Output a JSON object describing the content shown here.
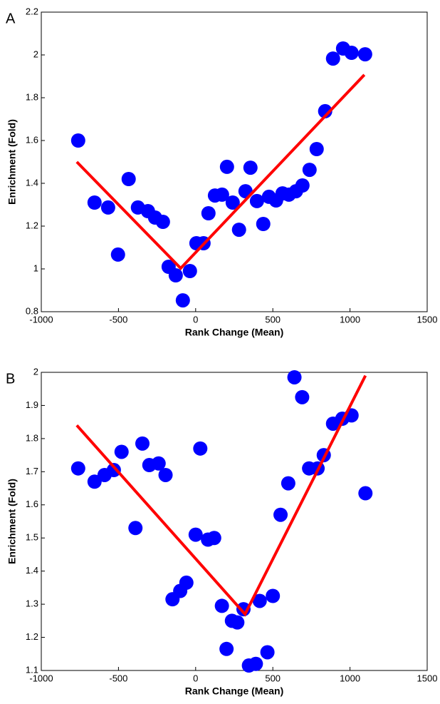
{
  "chart_data": [
    {
      "type": "scatter",
      "panel_label": "A",
      "xlabel": "Rank Change (Mean)",
      "ylabel": "Enrichment (Fold)",
      "xlim": [
        -1000,
        1500
      ],
      "ylim": [
        0.8,
        2.2
      ],
      "xticks": [
        -1000,
        -500,
        0,
        500,
        1000,
        1500
      ],
      "yticks": [
        0.8,
        1,
        1.2,
        1.4,
        1.6,
        1.8,
        2,
        2.2
      ],
      "series": [
        {
          "type": "scatter",
          "color": "#0000ff",
          "x": [
            -761,
            -655,
            -567,
            -503,
            -434,
            -374,
            -309,
            -263,
            -212,
            -175,
            -129,
            -83,
            -37,
            5,
            51,
            83,
            125,
            171,
            203,
            240,
            281,
            323,
            355,
            397,
            438,
            475,
            521,
            563,
            604,
            650,
            692,
            738,
            784,
            839,
            890,
            955,
            1010,
            1098
          ],
          "values": [
            1.6,
            1.31,
            1.287,
            1.067,
            1.42,
            1.287,
            1.27,
            1.24,
            1.22,
            1.01,
            0.97,
            0.853,
            0.99,
            1.12,
            1.12,
            1.26,
            1.343,
            1.347,
            1.477,
            1.31,
            1.183,
            1.363,
            1.473,
            1.317,
            1.21,
            1.337,
            1.32,
            1.353,
            1.347,
            1.363,
            1.39,
            1.463,
            1.56,
            1.737,
            1.983,
            2.03,
            2.01,
            2.003
          ]
        },
        {
          "type": "line",
          "color": "#ff0000",
          "x": [
            -770,
            -97,
            1093
          ],
          "values": [
            1.5,
            1.003,
            1.907
          ]
        }
      ]
    },
    {
      "type": "scatter",
      "panel_label": "B",
      "xlabel": "Rank Change (Mean)",
      "ylabel": "Enrichment (Fold)",
      "xlim": [
        -1000,
        1500
      ],
      "ylim": [
        1.1,
        2
      ],
      "xticks": [
        -1000,
        -500,
        0,
        500,
        1000,
        1500
      ],
      "yticks": [
        1.1,
        1.2,
        1.3,
        1.4,
        1.5,
        1.6,
        1.7,
        1.8,
        1.9,
        2
      ],
      "series": [
        {
          "type": "scatter",
          "color": "#0000ff",
          "x": [
            -761,
            -655,
            -590,
            -530,
            -480,
            -390,
            -345,
            -300,
            -240,
            -195,
            -150,
            -100,
            -60,
            0,
            30,
            80,
            120,
            170,
            200,
            235,
            270,
            310,
            345,
            390,
            415,
            465,
            500,
            550,
            600,
            640,
            690,
            735,
            790,
            830,
            890,
            950,
            1010,
            1100
          ],
          "values": [
            1.71,
            1.67,
            1.69,
            1.705,
            1.76,
            1.53,
            1.785,
            1.72,
            1.725,
            1.69,
            1.315,
            1.34,
            1.365,
            1.51,
            1.77,
            1.495,
            1.5,
            1.295,
            1.165,
            1.25,
            1.245,
            1.285,
            1.115,
            1.12,
            1.31,
            1.155,
            1.325,
            1.57,
            1.665,
            1.985,
            1.925,
            1.71,
            1.71,
            1.75,
            1.845,
            1.86,
            1.87,
            1.635
          ]
        },
        {
          "type": "line",
          "color": "#ff0000",
          "x": [
            -770,
            320,
            1100
          ],
          "values": [
            1.84,
            1.27,
            1.99
          ]
        }
      ]
    }
  ]
}
